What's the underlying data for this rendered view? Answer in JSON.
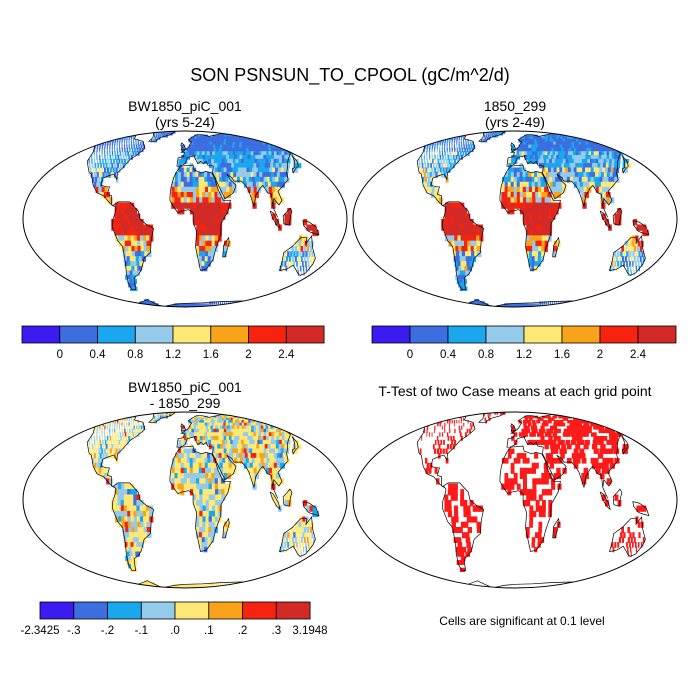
{
  "title": "SON PSNSUN_TO_CPOOL (gC/m^2/d)",
  "panels": [
    {
      "title_line1": "BW1850_piC_001",
      "title_line2": "(yrs 5-24)"
    },
    {
      "title_line1": "1850_299",
      "title_line2": "(yrs 2-49)"
    },
    {
      "title_line1": "BW1850_piC_001",
      "title_line2": "- 1850_299"
    },
    {
      "title_line1": "T-Test of two Case means at each grid point",
      "title_line2": ""
    }
  ],
  "colorbar_case": {
    "colors": [
      "#3b1cf0",
      "#3d6ee0",
      "#1aa7ee",
      "#94cbeb",
      "#fde875",
      "#f9a31b",
      "#f52310",
      "#d22a26"
    ],
    "labels": [
      "0",
      "0.4",
      "0.8",
      "1.2",
      "1.6",
      "2",
      "2.4"
    ]
  },
  "colorbar_diff": {
    "colors": [
      "#3b1cf0",
      "#3d6ee0",
      "#1aa7ee",
      "#94cbeb",
      "#fde875",
      "#f9a31b",
      "#f52310",
      "#d22a26"
    ],
    "labels": [
      "-2.3425",
      "-.3",
      "-.2",
      "-.1",
      ".0",
      ".1",
      ".2",
      ".3",
      "3.1948"
    ]
  },
  "footnote": "Cells are significant at 0.1 level",
  "map_colors": {
    "ocean": "#ffffff",
    "case_land": "#3d6ee0",
    "diff_land": "#fde875",
    "ttest_mark": "#ff1a1a"
  },
  "chart_data": [
    {
      "type": "heatmap",
      "panel": "BW1850_piC_001 (yrs 5-24)",
      "variable": "PSNSUN_TO_CPOOL",
      "units": "gC/m^2/d",
      "season": "SON"
    },
    {
      "type": "heatmap",
      "panel": "1850_299 (yrs 2-49)",
      "variable": "PSNSUN_TO_CPOOL",
      "units": "gC/m^2/d",
      "season": "SON"
    },
    {
      "type": "heatmap",
      "panel": "BW1850_piC_001 - 1850_299",
      "min": -2.3425,
      "max": 3.1948
    },
    {
      "type": "heatmap",
      "panel": "T-Test of two Case means at each grid point",
      "significance_level": 0.1
    }
  ]
}
